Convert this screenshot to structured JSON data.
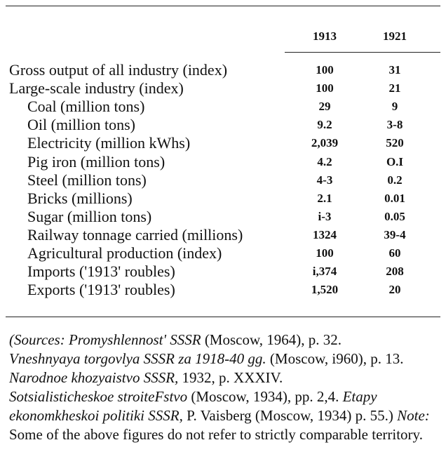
{
  "table": {
    "columns": [
      "1913",
      "1921"
    ],
    "rows": [
      {
        "label": "Gross output of all industry (index)",
        "v1913": "100",
        "v1921": "31",
        "indent": 0
      },
      {
        "label": "Large-scale industry (index)",
        "v1913": "100",
        "v1921": "21",
        "indent": 0
      },
      {
        "label": "Coal (million tons)",
        "v1913": "29",
        "v1921": "9",
        "indent": 1
      },
      {
        "label": "Oil (million tons)",
        "v1913": "9.2",
        "v1921": "3-8",
        "indent": 1
      },
      {
        "label": "Electricity (million kWhs)",
        "v1913": "2,039",
        "v1921": "520",
        "indent": 1
      },
      {
        "label": "Pig iron (million tons)",
        "v1913": "4.2",
        "v1921": "O.I",
        "indent": 1
      },
      {
        "label": "Steel (million tons)",
        "v1913": "4-3",
        "v1921": "0.2",
        "indent": 1
      },
      {
        "label": "Bricks (millions)",
        "v1913": "2.1",
        "v1921": "0.01",
        "indent": 1
      },
      {
        "label": "Sugar (million tons)",
        "v1913": "i-3",
        "v1921": "0.05",
        "indent": 1
      },
      {
        "label": "Railway tonnage carried (millions)",
        "v1913": "1324",
        "v1921": "39-4",
        "indent": 1
      },
      {
        "label": "Agricultural production (index)",
        "v1913": "100",
        "v1921": "60",
        "indent": 1
      },
      {
        "label": "Imports ('1913' roubles)",
        "v1913": "i,374",
        "v1921": "208",
        "indent": 1
      },
      {
        "label": "Exports ('1913' roubles)",
        "v1913": "1,520",
        "v1921": "20",
        "indent": 1
      }
    ]
  },
  "sources": {
    "s1_title": "(Sources: Promyshlennost' SSSR",
    "s1_rest": " (Moscow, 1964), p. 32.",
    "s2_title": "Vneshnyaya torgovlya SSSR za 1918-40 gg.",
    "s2_rest": " (Moscow, i960), p. 13. ",
    "s3_title": "Narodnoe khozyaistvo SSSR,",
    "s3_rest": " 1932, p. XXXIV.",
    "s4_title": "Sotsialisticheskoe stroiteFstvo",
    "s4_rest": " (Moscow, 1934), pp. 2,4. ",
    "s5_title": "Etapy ekonomkheskoi politiki SSSR,",
    "s5_rest": " P. Vaisberg (Moscow, 1934) p. 55.) ",
    "note_label": "Note:",
    "note_text": " Some of the above figures do not refer to strictly comparable territory."
  }
}
